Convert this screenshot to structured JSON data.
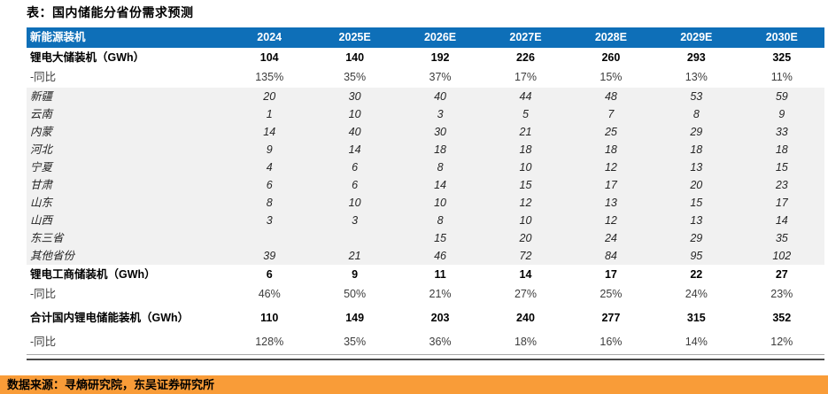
{
  "title": "表：国内储能分省份需求预测",
  "colors": {
    "header_bg": "#0E6FB8",
    "header_text": "#FFFFFF",
    "province_band_bg": "#F1F1F1",
    "source_bar_bg": "#F99C38",
    "table_bottom_border": "#4A4A4A"
  },
  "table": {
    "columns": [
      "新能源装机",
      "2024",
      "2025E",
      "2026E",
      "2027E",
      "2028E",
      "2029E",
      "2030E"
    ],
    "rows": [
      {
        "label": "锂电大储装机（GWh）",
        "style": "section",
        "values": [
          "104",
          "140",
          "192",
          "226",
          "260",
          "293",
          "325"
        ]
      },
      {
        "label": "-同比",
        "style": "pct",
        "values": [
          "135%",
          "35%",
          "37%",
          "17%",
          "15%",
          "13%",
          "11%"
        ]
      },
      {
        "label": "新疆",
        "style": "province",
        "values": [
          "20",
          "30",
          "40",
          "44",
          "48",
          "53",
          "59"
        ]
      },
      {
        "label": "云南",
        "style": "province",
        "values": [
          "1",
          "10",
          "3",
          "5",
          "7",
          "8",
          "9"
        ]
      },
      {
        "label": "内蒙",
        "style": "province",
        "values": [
          "14",
          "40",
          "30",
          "21",
          "25",
          "29",
          "33"
        ]
      },
      {
        "label": "河北",
        "style": "province",
        "values": [
          "9",
          "14",
          "18",
          "18",
          "18",
          "18",
          "18"
        ]
      },
      {
        "label": "宁夏",
        "style": "province",
        "values": [
          "4",
          "6",
          "8",
          "10",
          "12",
          "13",
          "15"
        ]
      },
      {
        "label": "甘肃",
        "style": "province",
        "values": [
          "6",
          "6",
          "14",
          "15",
          "17",
          "20",
          "23"
        ]
      },
      {
        "label": "山东",
        "style": "province",
        "values": [
          "8",
          "10",
          "10",
          "12",
          "13",
          "15",
          "17"
        ]
      },
      {
        "label": "山西",
        "style": "province",
        "values": [
          "3",
          "3",
          "8",
          "10",
          "12",
          "13",
          "14"
        ]
      },
      {
        "label": "东三省",
        "style": "province",
        "values": [
          "",
          "",
          "15",
          "20",
          "24",
          "29",
          "35"
        ]
      },
      {
        "label": "其他省份",
        "style": "province",
        "values": [
          "39",
          "21",
          "46",
          "72",
          "84",
          "95",
          "102"
        ]
      },
      {
        "label": "锂电工商储装机（GWh）",
        "style": "section",
        "values": [
          "6",
          "9",
          "11",
          "14",
          "17",
          "22",
          "27"
        ]
      },
      {
        "label": "-同比",
        "style": "pct",
        "values": [
          "46%",
          "50%",
          "21%",
          "27%",
          "25%",
          "24%",
          "23%"
        ]
      },
      {
        "label": "合计国内锂电储能装机（GWh）",
        "style": "section_tall",
        "values": [
          "110",
          "149",
          "203",
          "240",
          "277",
          "315",
          "352"
        ]
      },
      {
        "label": "-同比",
        "style": "pct_tall",
        "values": [
          "128%",
          "35%",
          "36%",
          "18%",
          "16%",
          "14%",
          "12%"
        ]
      }
    ]
  },
  "source_bar": {
    "text": "数据来源：寻熵研究院，东吴证券研究所"
  }
}
